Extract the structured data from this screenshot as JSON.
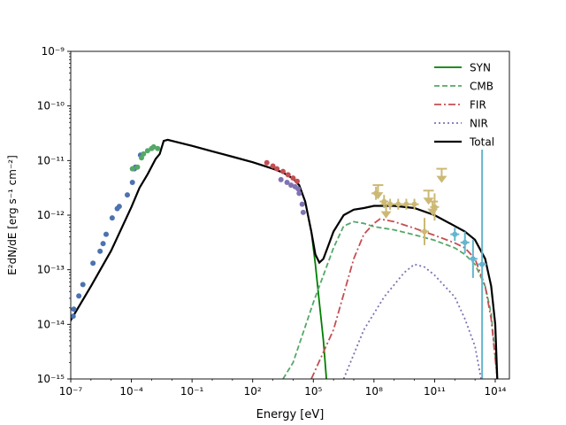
{
  "chart_data": {
    "type": "line",
    "title": "",
    "xlabel": "Energy [eV]",
    "ylabel": "E²dN/dE [erg s⁻¹ cm⁻²]",
    "xscale": "log",
    "yscale": "log",
    "xlim_log10": [
      -7,
      14.7
    ],
    "ylim_log10": [
      -15,
      -9
    ],
    "x_ticks": [
      {
        "exp": -7,
        "label": "10⁻⁷"
      },
      {
        "exp": -4,
        "label": "10⁻⁴"
      },
      {
        "exp": -1,
        "label": "10⁻¹"
      },
      {
        "exp": 2,
        "label": "10²"
      },
      {
        "exp": 5,
        "label": "10⁵"
      },
      {
        "exp": 8,
        "label": "10⁸"
      },
      {
        "exp": 11,
        "label": "10¹¹"
      },
      {
        "exp": 14,
        "label": "10¹⁴"
      }
    ],
    "y_ticks": [
      {
        "exp": -15,
        "label": "10⁻¹⁵"
      },
      {
        "exp": -14,
        "label": "10⁻¹⁴"
      },
      {
        "exp": -13,
        "label": "10⁻¹³"
      },
      {
        "exp": -12,
        "label": "10⁻¹²"
      },
      {
        "exp": -11,
        "label": "10⁻¹¹"
      },
      {
        "exp": -10,
        "label": "10⁻¹⁰"
      },
      {
        "exp": -9,
        "label": "10⁻⁹"
      }
    ],
    "legend_position": "top-right",
    "series": [
      {
        "name": "SYN",
        "color": "#007f00",
        "dash": "solid",
        "points_log10": [
          [
            -7.2,
            -14.05
          ],
          [
            -6,
            -13.3
          ],
          [
            -5,
            -12.65
          ],
          [
            -4,
            -11.85
          ],
          [
            -3.6,
            -11.5
          ],
          [
            -3.2,
            -11.25
          ],
          [
            -2.8,
            -10.97
          ],
          [
            -2.6,
            -10.88
          ],
          [
            -2.4,
            -10.64
          ],
          [
            -2.2,
            -10.62
          ],
          [
            -2,
            -10.64
          ],
          [
            -1,
            -10.73
          ],
          [
            0,
            -10.83
          ],
          [
            1,
            -10.93
          ],
          [
            2,
            -11.03
          ],
          [
            3,
            -11.15
          ],
          [
            3.5,
            -11.22
          ],
          [
            4,
            -11.33
          ],
          [
            4.3,
            -11.45
          ],
          [
            4.6,
            -11.75
          ],
          [
            4.9,
            -12.3
          ],
          [
            5.1,
            -12.9
          ],
          [
            5.3,
            -13.6
          ],
          [
            5.5,
            -14.3
          ],
          [
            5.65,
            -15
          ]
        ]
      },
      {
        "name": "CMB",
        "color": "#55a868",
        "dash": "dashed",
        "points_log10": [
          [
            3.5,
            -15
          ],
          [
            4,
            -14.7
          ],
          [
            5,
            -13.6
          ],
          [
            6,
            -12.6
          ],
          [
            6.5,
            -12.2
          ],
          [
            7,
            -12.12
          ],
          [
            7.5,
            -12.15
          ],
          [
            8,
            -12.21
          ],
          [
            9,
            -12.27
          ],
          [
            10,
            -12.36
          ],
          [
            11,
            -12.46
          ],
          [
            12,
            -12.6
          ],
          [
            12.5,
            -12.72
          ],
          [
            13,
            -12.9
          ],
          [
            13.5,
            -13.3
          ],
          [
            13.8,
            -13.8
          ],
          [
            14.1,
            -15
          ]
        ]
      },
      {
        "name": "FIR",
        "color": "#c44e52",
        "dash": "dashdot",
        "points_log10": [
          [
            4.9,
            -15
          ],
          [
            6,
            -14.1
          ],
          [
            7,
            -12.8
          ],
          [
            7.5,
            -12.35
          ],
          [
            8,
            -12.15
          ],
          [
            8.3,
            -12.07
          ],
          [
            9,
            -12.12
          ],
          [
            10,
            -12.24
          ],
          [
            11,
            -12.37
          ],
          [
            12,
            -12.51
          ],
          [
            12.5,
            -12.6
          ],
          [
            13,
            -12.8
          ],
          [
            13.5,
            -13.3
          ],
          [
            13.8,
            -13.9
          ],
          [
            14.1,
            -15
          ]
        ]
      },
      {
        "name": "NIR",
        "color": "#8172b2",
        "dash": "dotted",
        "points_log10": [
          [
            6.5,
            -15
          ],
          [
            7.5,
            -14.1
          ],
          [
            8.5,
            -13.5
          ],
          [
            9.5,
            -13.05
          ],
          [
            10,
            -12.9
          ],
          [
            10.5,
            -12.95
          ],
          [
            11,
            -13.1
          ],
          [
            12,
            -13.5
          ],
          [
            12.5,
            -13.9
          ],
          [
            13,
            -14.4
          ],
          [
            13.3,
            -15
          ]
        ]
      },
      {
        "name": "Total",
        "color": "#000000",
        "dash": "solid",
        "points_log10": [
          [
            -7.2,
            -14.05
          ],
          [
            -6,
            -13.3
          ],
          [
            -5,
            -12.65
          ],
          [
            -4,
            -11.85
          ],
          [
            -3.6,
            -11.5
          ],
          [
            -3.2,
            -11.25
          ],
          [
            -2.8,
            -10.97
          ],
          [
            -2.6,
            -10.88
          ],
          [
            -2.4,
            -10.64
          ],
          [
            -2.2,
            -10.62
          ],
          [
            -2,
            -10.64
          ],
          [
            -1,
            -10.73
          ],
          [
            0,
            -10.83
          ],
          [
            1,
            -10.93
          ],
          [
            2,
            -11.03
          ],
          [
            3,
            -11.15
          ],
          [
            3.5,
            -11.22
          ],
          [
            4,
            -11.33
          ],
          [
            4.3,
            -11.45
          ],
          [
            4.6,
            -11.75
          ],
          [
            4.9,
            -12.3
          ],
          [
            5.1,
            -12.72
          ],
          [
            5.3,
            -12.87
          ],
          [
            5.5,
            -12.8
          ],
          [
            5.8,
            -12.5
          ],
          [
            6,
            -12.3
          ],
          [
            6.5,
            -12.0
          ],
          [
            7,
            -11.9
          ],
          [
            7.5,
            -11.87
          ],
          [
            8,
            -11.83
          ],
          [
            9,
            -11.83
          ],
          [
            10,
            -11.87
          ],
          [
            11,
            -12.0
          ],
          [
            12,
            -12.2
          ],
          [
            12.5,
            -12.3
          ],
          [
            13,
            -12.45
          ],
          [
            13.5,
            -12.8
          ],
          [
            13.8,
            -13.3
          ],
          [
            14,
            -14
          ],
          [
            14.1,
            -15
          ]
        ]
      }
    ],
    "observations": [
      {
        "name": "Radio (blue points)",
        "color": "#4c72b0",
        "points_log10": [
          [
            -6.88,
            -13.85
          ],
          [
            -6.85,
            -13.72
          ],
          [
            -6.6,
            -13.48
          ],
          [
            -6.4,
            -13.27
          ],
          [
            -5.9,
            -12.88
          ],
          [
            -5.55,
            -12.66
          ],
          [
            -5.4,
            -12.52
          ],
          [
            -5.25,
            -12.35
          ],
          [
            -4.95,
            -12.05
          ],
          [
            -4.7,
            -11.88
          ],
          [
            -4.6,
            -11.84
          ],
          [
            -4.2,
            -11.63
          ],
          [
            -3.95,
            -11.4
          ],
          [
            -3.85,
            -11.15
          ],
          [
            -3.8,
            -11.12
          ],
          [
            -3.55,
            -10.9
          ]
        ]
      },
      {
        "name": "Optical (green points)",
        "color": "#55a868",
        "points_log10": [
          [
            -3.95,
            -11.15
          ],
          [
            -3.7,
            -11.12
          ],
          [
            -3.5,
            -10.95
          ],
          [
            -3.4,
            -10.88
          ],
          [
            -3.2,
            -10.82
          ],
          [
            -3.0,
            -10.78
          ],
          [
            -2.9,
            -10.75
          ],
          [
            -2.7,
            -10.78
          ]
        ]
      },
      {
        "name": "X-ray (red points)",
        "color": "#c44e52",
        "points_log10": [
          [
            2.7,
            -11.04
          ],
          [
            3.0,
            -11.1
          ],
          [
            3.2,
            -11.15
          ],
          [
            3.5,
            -11.2
          ],
          [
            3.75,
            -11.26
          ],
          [
            4.0,
            -11.32
          ],
          [
            4.2,
            -11.38
          ]
        ]
      },
      {
        "name": "X-ray (purple points)",
        "color": "#8172b2",
        "points_log10": [
          [
            3.4,
            -11.35
          ],
          [
            3.7,
            -11.4
          ],
          [
            3.9,
            -11.45
          ],
          [
            4.1,
            -11.48
          ],
          [
            4.25,
            -11.52
          ],
          [
            4.3,
            -11.6
          ],
          [
            4.45,
            -11.8
          ],
          [
            4.5,
            -11.95
          ]
        ]
      },
      {
        "name": "GeV (tan points)",
        "color": "#ccb974",
        "points_log10": [
          [
            8.1,
            -11.6,
            0.12
          ],
          [
            8.5,
            -11.75,
            0.12
          ],
          [
            8.8,
            -11.8,
            0.1
          ],
          [
            9.2,
            -11.8,
            0.1
          ],
          [
            9.6,
            -11.8,
            0.1
          ],
          [
            10.0,
            -11.8,
            0.1
          ],
          [
            10.5,
            -12.3,
            0.25
          ],
          [
            11.0,
            -11.85,
            0.25
          ]
        ],
        "upper_limits_log10": [
          [
            8.2,
            -11.45
          ],
          [
            8.6,
            -11.8
          ],
          [
            10.7,
            -11.55
          ],
          [
            10.9,
            -11.75
          ],
          [
            11.35,
            -11.15
          ]
        ]
      },
      {
        "name": "TeV (cyan points)",
        "color": "#64b5cd",
        "points_log10": [
          [
            12.0,
            -12.35,
            0.12
          ],
          [
            12.5,
            -12.5,
            0.2
          ],
          [
            12.9,
            -12.8,
            0.35
          ],
          [
            13.35,
            -12.9,
            2.1
          ]
        ]
      }
    ]
  }
}
